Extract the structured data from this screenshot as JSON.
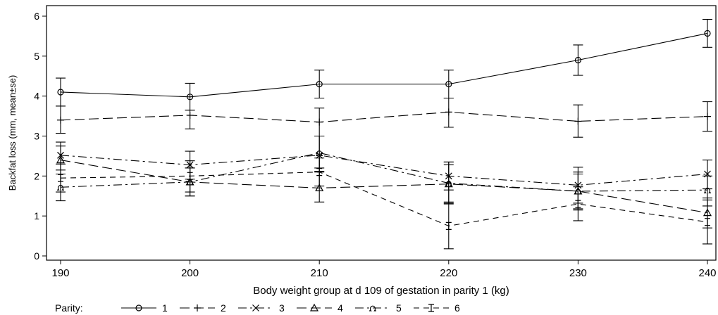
{
  "chart_data": {
    "type": "line",
    "xlabel": "Body weight group at d 109 of gestation in parity 1 (kg)",
    "ylabel": "Backfat loss (mm, mean±se)",
    "x": [
      190,
      200,
      210,
      220,
      230,
      240
    ],
    "xlim": [
      190,
      240
    ],
    "ylim": [
      0,
      6
    ],
    "x_ticks": [
      "190",
      "200",
      "210",
      "220",
      "230",
      "240"
    ],
    "y_ticks": [
      "0",
      "1",
      "2",
      "3",
      "4",
      "5",
      "6"
    ],
    "grid": false,
    "legend": {
      "title": "Parity:",
      "position": "bottom-left"
    },
    "series": [
      {
        "name": "1",
        "marker": "circle",
        "dash": "solid",
        "values": [
          4.1,
          3.98,
          4.3,
          4.3,
          4.9,
          5.57
        ],
        "lower": [
          3.75,
          3.65,
          3.95,
          3.95,
          4.52,
          5.22
        ],
        "upper": [
          4.45,
          4.32,
          4.65,
          4.65,
          5.28,
          5.92
        ]
      },
      {
        "name": "2",
        "marker": "plus",
        "dash": "long-dash",
        "values": [
          3.4,
          3.52,
          3.35,
          3.6,
          3.37,
          3.49
        ],
        "lower": [
          3.07,
          3.18,
          3.0,
          3.22,
          2.97,
          3.12
        ],
        "upper": [
          3.75,
          3.65,
          3.7,
          3.95,
          3.78,
          3.86
        ]
      },
      {
        "name": "3",
        "marker": "x",
        "dash": "dash-dot",
        "values": [
          2.52,
          2.28,
          2.52,
          2.0,
          1.77,
          2.05
        ],
        "lower": [
          2.15,
          1.92,
          2.12,
          1.65,
          1.32,
          1.68
        ],
        "upper": [
          2.85,
          2.62,
          3.0,
          2.35,
          2.22,
          2.4
        ]
      },
      {
        "name": "4",
        "marker": "triangle",
        "dash": "long-dash",
        "values": [
          2.4,
          1.85,
          1.7,
          1.8,
          1.62,
          1.08
        ],
        "lower": [
          2.05,
          1.5,
          1.35,
          1.32,
          1.18,
          0.7
        ],
        "upper": [
          2.75,
          2.2,
          2.1,
          2.28,
          2.05,
          1.45
        ]
      },
      {
        "name": "5",
        "marker": "omega",
        "dash": "dash-dot",
        "values": [
          1.72,
          1.85,
          2.58,
          1.82,
          1.62,
          1.65
        ],
        "lower": [
          1.38,
          1.5,
          2.2,
          1.3,
          1.15,
          1.25
        ],
        "upper": [
          2.05,
          2.2,
          3.0,
          2.35,
          2.1,
          2.0
        ]
      },
      {
        "name": "6",
        "marker": "ibeam",
        "dash": "dash",
        "values": [
          1.95,
          2.0,
          2.1,
          0.75,
          1.3,
          0.85
        ],
        "lower": [
          1.6,
          1.6,
          1.75,
          0.18,
          0.88,
          0.3
        ],
        "upper": [
          2.3,
          2.38,
          2.45,
          1.35,
          1.73,
          1.4
        ]
      }
    ]
  }
}
